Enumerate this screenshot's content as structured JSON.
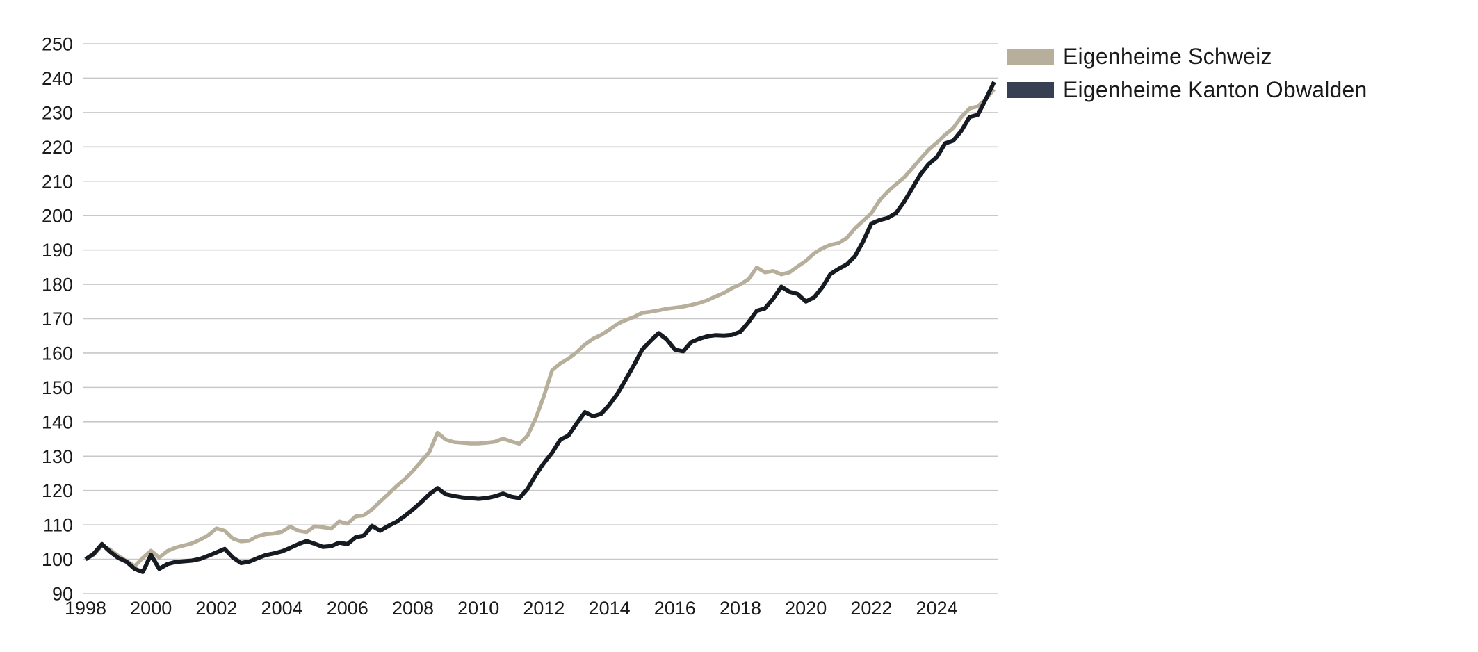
{
  "chart_data": {
    "type": "line",
    "title": "",
    "xlabel": "",
    "ylabel": "",
    "x_unit": "year (quarterly points)",
    "x_start": 1998.0,
    "x_step": 0.25,
    "xlim": [
      1997.95,
      2025.9
    ],
    "ylim": [
      90,
      250
    ],
    "grid": "horizontal",
    "legend_position": "top-right-outside",
    "y_ticks": [
      90,
      100,
      110,
      120,
      130,
      140,
      150,
      160,
      170,
      180,
      190,
      200,
      210,
      220,
      230,
      240,
      250
    ],
    "x_tick_years": [
      1998,
      2000,
      2002,
      2004,
      2006,
      2008,
      2010,
      2012,
      2014,
      2016,
      2018,
      2020,
      2022,
      2024
    ],
    "x_tick_labels": [
      "1998",
      "2000",
      "2002",
      "2004",
      "2006",
      "2008",
      "2010",
      "2012",
      "2014",
      "2016",
      "2018",
      "2020",
      "2022",
      "2024"
    ],
    "series": [
      {
        "name": "Eigenheime Schweiz",
        "color": "#b7af9c",
        "line_width": 5.5,
        "values": [
          100.0,
          101.3,
          104.0,
          102.8,
          101.0,
          99.5,
          98.0,
          100.4,
          102.5,
          100.5,
          102.4,
          103.4,
          104.0,
          104.6,
          105.7,
          107.0,
          109.0,
          108.3,
          106.0,
          105.2,
          105.4,
          106.7,
          107.3,
          107.5,
          108.0,
          109.5,
          108.3,
          107.9,
          109.6,
          109.3,
          108.9,
          111.0,
          110.3,
          112.5,
          112.8,
          114.5,
          116.8,
          119.0,
          121.3,
          123.3,
          125.7,
          128.5,
          131.2,
          136.8,
          134.8,
          134.1,
          133.9,
          133.7,
          133.7,
          133.9,
          134.2,
          135.1,
          134.3,
          133.6,
          136.0,
          141.0,
          147.5,
          155.0,
          157.0,
          158.4,
          160.2,
          162.5,
          164.2,
          165.3,
          166.8,
          168.5,
          169.6,
          170.5,
          171.7,
          172.0,
          172.4,
          172.9,
          173.2,
          173.5,
          174.0,
          174.6,
          175.4,
          176.5,
          177.5,
          178.9,
          180.0,
          181.5,
          184.9,
          183.5,
          183.9,
          182.9,
          183.5,
          185.2,
          186.8,
          189.0,
          190.5,
          191.5,
          192.0,
          193.5,
          196.3,
          198.5,
          200.7,
          204.4,
          207.0,
          209.1,
          211.1,
          213.8,
          216.5,
          219.2,
          221.2,
          223.5,
          225.5,
          228.7,
          231.2,
          231.8,
          234.0,
          236.8
        ]
      },
      {
        "name": "Eigenheime Kanton Obwalden",
        "color": "#161b22",
        "swatch_color": "#36405299",
        "line_width": 6,
        "values": [
          100.0,
          101.6,
          104.4,
          102.2,
          100.4,
          99.3,
          97.2,
          96.3,
          101.3,
          97.2,
          98.6,
          99.2,
          99.4,
          99.6,
          100.1,
          101.0,
          102.0,
          103.0,
          100.5,
          98.9,
          99.3,
          100.3,
          101.2,
          101.7,
          102.3,
          103.3,
          104.4,
          105.3,
          104.5,
          103.6,
          103.8,
          104.8,
          104.4,
          106.4,
          106.9,
          109.7,
          108.3,
          109.7,
          110.9,
          112.6,
          114.5,
          116.6,
          118.9,
          120.7,
          118.9,
          118.4,
          118.0,
          117.8,
          117.6,
          117.8,
          118.3,
          119.1,
          118.2,
          117.8,
          120.5,
          124.5,
          128.0,
          131.0,
          134.8,
          136.0,
          139.5,
          142.8,
          141.6,
          142.3,
          145.0,
          148.2,
          152.3,
          156.5,
          161.0,
          163.5,
          165.8,
          164.0,
          161.0,
          160.5,
          163.2,
          164.2,
          164.9,
          165.2,
          165.1,
          165.3,
          166.2,
          169.0,
          172.3,
          173.0,
          175.8,
          179.3,
          177.8,
          177.2,
          175.0,
          176.2,
          179.1,
          183.0,
          184.5,
          185.8,
          188.2,
          192.5,
          197.7,
          198.7,
          199.3,
          200.7,
          204.0,
          208.0,
          212.0,
          215.0,
          217.0,
          221.0,
          221.8,
          224.7,
          228.7,
          229.3,
          234.0,
          238.9
        ]
      }
    ]
  },
  "legend": {
    "items": [
      {
        "label": "Eigenheime Schweiz",
        "swatch_color": "#b7af9c"
      },
      {
        "label": "Eigenheime Kanton Obwalden",
        "swatch_color": "#364052"
      }
    ]
  },
  "style": {
    "gridline_color": "#c8c8c8",
    "tick_label_color": "#1a1a1a",
    "background": "#ffffff"
  }
}
